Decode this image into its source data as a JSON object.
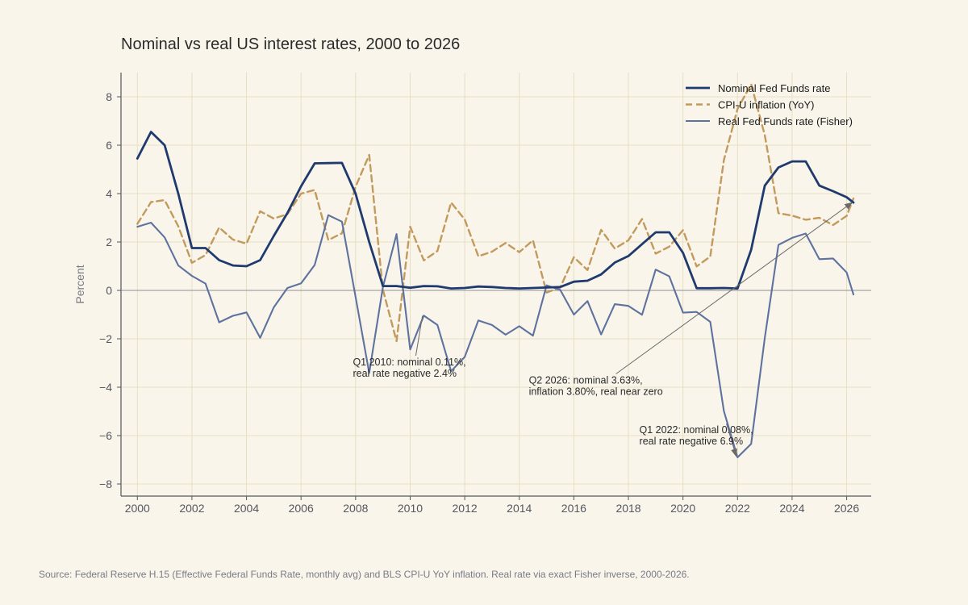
{
  "title": "Nominal vs real US interest rates, 2000 to 2026",
  "source": "Source: Federal Reserve H.15 (Effective Federal Funds Rate, monthly avg) and BLS CPI-U YoY inflation. Real rate via exact Fisher inverse, 2000-2026.",
  "colors": {
    "background": "#f9f5ea",
    "grid": "#e6dfc2",
    "nominal": "#1f3a6e",
    "inflation": "#c29a5e",
    "real": "#5e72a0",
    "zero_line": "#a3a3a3",
    "axis": "#55565f"
  },
  "chart_data": {
    "type": "line",
    "title": "Nominal vs real US interest rates, 2000 to 2026",
    "ylabel": "Percent",
    "xlabel": "",
    "xlim": [
      1999.4,
      2026.9
    ],
    "ylim": [
      -8.5,
      9
    ],
    "xticks": [
      2000,
      2002,
      2004,
      2006,
      2008,
      2010,
      2012,
      2014,
      2016,
      2018,
      2020,
      2022,
      2024,
      2026
    ],
    "yticks": [
      8,
      6,
      4,
      2,
      0,
      -2,
      -4,
      -6,
      -8
    ],
    "ytick_labels": [
      "8",
      "6",
      "4",
      "2",
      "0",
      "−2",
      "−4",
      "−6",
      "−8"
    ],
    "grid": true,
    "legend_position": "top-right",
    "series": [
      {
        "name": "Nominal Fed Funds rate",
        "style": "solid",
        "points": [
          [
            2000,
            5.45
          ],
          [
            2000.5,
            6.55
          ],
          [
            2001,
            6.0
          ],
          [
            2001.5,
            4.0
          ],
          [
            2002,
            1.75
          ],
          [
            2002.5,
            1.75
          ],
          [
            2003,
            1.25
          ],
          [
            2003.5,
            1.03
          ],
          [
            2004,
            1.0
          ],
          [
            2004.5,
            1.25
          ],
          [
            2005,
            2.25
          ],
          [
            2005.5,
            3.2
          ],
          [
            2006,
            4.3
          ],
          [
            2006.5,
            5.25
          ],
          [
            2007,
            5.26
          ],
          [
            2007.5,
            5.27
          ],
          [
            2008,
            4.0
          ],
          [
            2008.5,
            2.0
          ],
          [
            2009,
            0.18
          ],
          [
            2009.5,
            0.18
          ],
          [
            2010,
            0.11
          ],
          [
            2010.5,
            0.18
          ],
          [
            2011,
            0.17
          ],
          [
            2011.5,
            0.08
          ],
          [
            2012,
            0.1
          ],
          [
            2012.5,
            0.16
          ],
          [
            2013,
            0.14
          ],
          [
            2013.5,
            0.1
          ],
          [
            2014,
            0.08
          ],
          [
            2014.5,
            0.1
          ],
          [
            2015,
            0.12
          ],
          [
            2015.5,
            0.14
          ],
          [
            2016,
            0.36
          ],
          [
            2016.5,
            0.4
          ],
          [
            2017,
            0.66
          ],
          [
            2017.5,
            1.15
          ],
          [
            2018,
            1.42
          ],
          [
            2018.5,
            1.91
          ],
          [
            2019,
            2.4
          ],
          [
            2019.5,
            2.4
          ],
          [
            2020,
            1.55
          ],
          [
            2020.5,
            0.09
          ],
          [
            2021,
            0.09
          ],
          [
            2021.5,
            0.1
          ],
          [
            2022,
            0.08
          ],
          [
            2022.5,
            1.68
          ],
          [
            2023,
            4.33
          ],
          [
            2023.5,
            5.08
          ],
          [
            2024,
            5.33
          ],
          [
            2024.5,
            5.33
          ],
          [
            2025,
            4.33
          ],
          [
            2025.5,
            4.1
          ],
          [
            2026,
            3.85
          ],
          [
            2026.25,
            3.63
          ]
        ]
      },
      {
        "name": "CPI-U inflation (YoY)",
        "style": "dashed",
        "points": [
          [
            2000,
            2.75
          ],
          [
            2000.5,
            3.65
          ],
          [
            2001,
            3.73
          ],
          [
            2001.5,
            2.65
          ],
          [
            2002,
            1.14
          ],
          [
            2002.5,
            1.46
          ],
          [
            2003,
            2.6
          ],
          [
            2003.5,
            2.1
          ],
          [
            2004,
            1.93
          ],
          [
            2004.5,
            3.27
          ],
          [
            2005,
            2.97
          ],
          [
            2005.5,
            3.15
          ],
          [
            2006,
            4.0
          ],
          [
            2006.5,
            4.15
          ],
          [
            2007,
            2.08
          ],
          [
            2007.5,
            2.36
          ],
          [
            2008,
            4.28
          ],
          [
            2008.5,
            5.6
          ],
          [
            2009,
            0.03
          ],
          [
            2009.5,
            -2.1
          ],
          [
            2010,
            2.63
          ],
          [
            2010.5,
            1.24
          ],
          [
            2011,
            1.63
          ],
          [
            2011.5,
            3.63
          ],
          [
            2012,
            2.93
          ],
          [
            2012.5,
            1.41
          ],
          [
            2013,
            1.6
          ],
          [
            2013.5,
            1.96
          ],
          [
            2014,
            1.58
          ],
          [
            2014.5,
            2.07
          ],
          [
            2015,
            -0.09
          ],
          [
            2015.5,
            0.12
          ],
          [
            2016,
            1.37
          ],
          [
            2016.5,
            0.84
          ],
          [
            2017,
            2.5
          ],
          [
            2017.5,
            1.73
          ],
          [
            2018,
            2.07
          ],
          [
            2018.5,
            2.95
          ],
          [
            2019,
            1.52
          ],
          [
            2019.5,
            1.81
          ],
          [
            2020,
            2.49
          ],
          [
            2020.5,
            0.99
          ],
          [
            2021,
            1.4
          ],
          [
            2021.5,
            5.39
          ],
          [
            2022,
            7.5
          ],
          [
            2022.5,
            8.52
          ],
          [
            2023,
            6.41
          ],
          [
            2023.5,
            3.19
          ],
          [
            2024,
            3.09
          ],
          [
            2024.5,
            2.92
          ],
          [
            2025,
            3.0
          ],
          [
            2025.5,
            2.7
          ],
          [
            2026,
            3.08
          ],
          [
            2026.25,
            3.8
          ]
        ]
      },
      {
        "name": "Real Fed Funds rate (Fisher)",
        "style": "solid",
        "points": [
          [
            2000,
            2.63
          ],
          [
            2000.5,
            2.8
          ],
          [
            2001,
            2.19
          ],
          [
            2001.5,
            1.03
          ],
          [
            2002,
            0.6
          ],
          [
            2002.5,
            0.28
          ],
          [
            2003,
            -1.32
          ],
          [
            2003.5,
            -1.05
          ],
          [
            2004,
            -0.91
          ],
          [
            2004.5,
            -1.96
          ],
          [
            2005,
            -0.7
          ],
          [
            2005.5,
            0.1
          ],
          [
            2006,
            0.29
          ],
          [
            2006.5,
            1.05
          ],
          [
            2007,
            3.11
          ],
          [
            2007.5,
            2.84
          ],
          [
            2008,
            -0.27
          ],
          [
            2008.5,
            -3.41
          ],
          [
            2009,
            0.14
          ],
          [
            2009.5,
            2.33
          ],
          [
            2010,
            -2.44
          ],
          [
            2010.5,
            -1.04
          ],
          [
            2011,
            -1.43
          ],
          [
            2011.5,
            -3.34
          ],
          [
            2012,
            -2.75
          ],
          [
            2012.5,
            -1.24
          ],
          [
            2013,
            -1.43
          ],
          [
            2013.5,
            -1.83
          ],
          [
            2014,
            -1.48
          ],
          [
            2014.5,
            -1.87
          ],
          [
            2015,
            0.21
          ],
          [
            2015.5,
            0.02
          ],
          [
            2016,
            -1.0
          ],
          [
            2016.5,
            -0.44
          ],
          [
            2017,
            -1.82
          ],
          [
            2017.5,
            -0.57
          ],
          [
            2018,
            -0.64
          ],
          [
            2018.5,
            -1.01
          ],
          [
            2019,
            0.86
          ],
          [
            2019.5,
            0.58
          ],
          [
            2020,
            -0.92
          ],
          [
            2020.5,
            -0.89
          ],
          [
            2021,
            -1.3
          ],
          [
            2021.5,
            -4.99
          ],
          [
            2022,
            -6.9
          ],
          [
            2022.5,
            -6.34
          ],
          [
            2023,
            -1.96
          ],
          [
            2023.5,
            1.88
          ],
          [
            2024,
            2.17
          ],
          [
            2024.5,
            2.35
          ],
          [
            2025,
            1.29
          ],
          [
            2025.5,
            1.32
          ],
          [
            2026,
            0.74
          ],
          [
            2026.25,
            -0.17
          ]
        ]
      }
    ],
    "annotations": [
      {
        "lines": [
          "Q1 2010: nominal 0.11%,",
          "real rate negative 2.4%"
        ],
        "point": [
          2010.45,
          -1.05
        ],
        "text_pos": [
          2007.9,
          -3.1
        ],
        "arrow_head": false
      },
      {
        "lines": [
          "Q2 2026: nominal 3.63%,",
          "inflation 3.80%, real near zero"
        ],
        "point": [
          2026.2,
          3.63
        ],
        "text_pos": [
          2014.35,
          -3.85
        ],
        "arrow_head": true
      },
      {
        "lines": [
          "Q1 2022: nominal 0.08%,",
          "real rate negative 6.9%"
        ],
        "point": [
          2021.95,
          -6.85
        ],
        "text_pos": [
          2018.4,
          -5.9
        ],
        "arrow_head": true
      }
    ]
  }
}
